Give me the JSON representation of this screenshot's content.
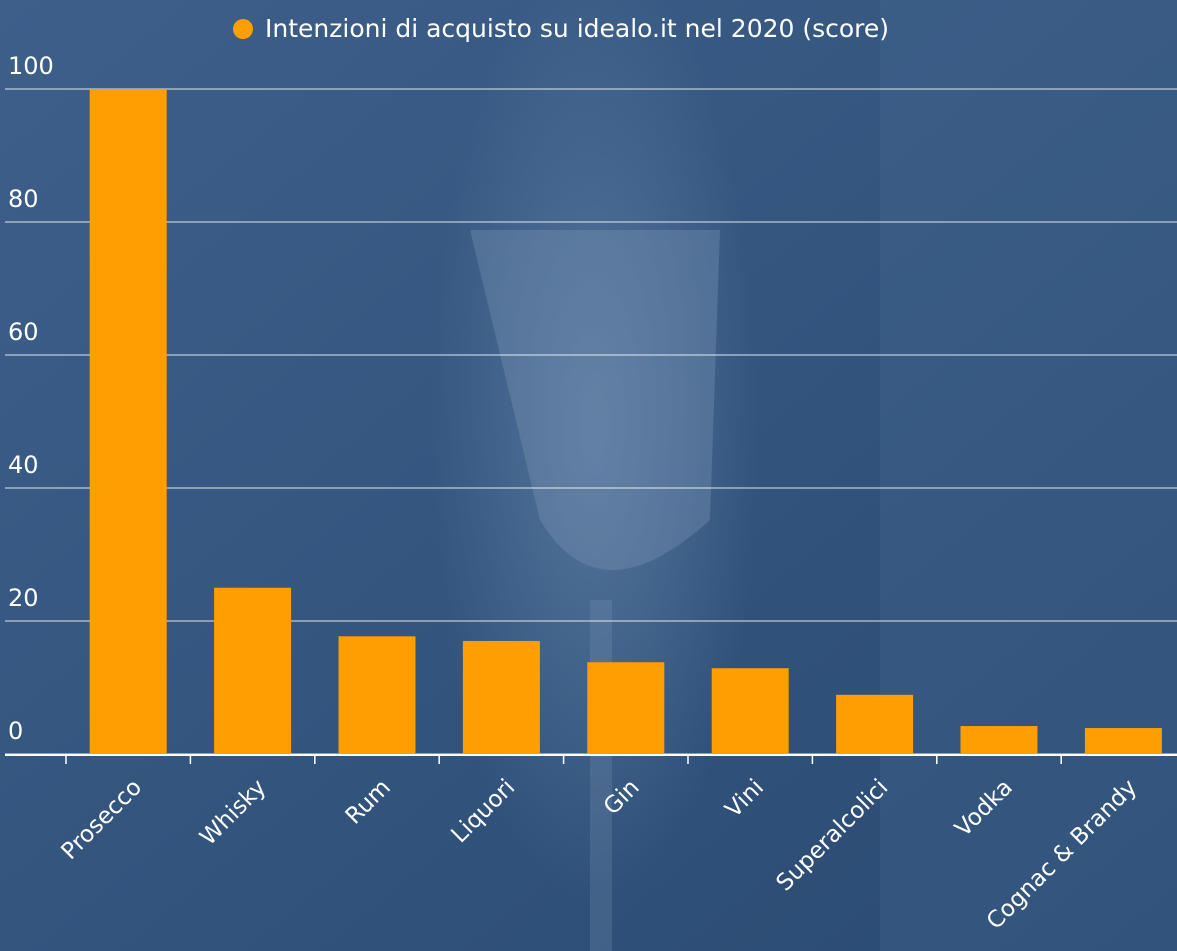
{
  "chart_data": {
    "type": "bar",
    "categories": [
      "Prosecco",
      "Whisky",
      "Rum",
      "Liquori",
      "Gin",
      "Vini",
      "Superalcolici",
      "Vodka",
      "Cognac & Brandy"
    ],
    "series": [
      {
        "name": "Intenzioni di acquisto su idealo.it nel 2020 (score)",
        "color": "#ff9e00",
        "values": [
          100,
          25,
          17.7,
          17,
          13.8,
          12.9,
          8.9,
          4.2,
          3.9
        ]
      }
    ],
    "ylim": [
      0,
      100
    ],
    "yticks": [
      0,
      20,
      40,
      60,
      80,
      100
    ],
    "grid": true
  }
}
